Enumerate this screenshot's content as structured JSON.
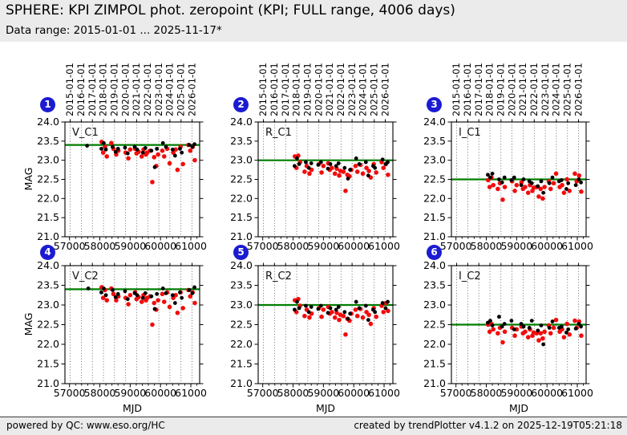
{
  "header": {
    "title": "SPHERE: KPI ZIMPOL phot. zeropoint (KPI; FULL range, 4006 days)",
    "subtitle": "Data range: 2015-01-01 ... 2025-11-17*"
  },
  "footer": {
    "left": "powered by QC: www.eso.org/HC",
    "right": "created by trendPlotter v4.1.2 on 2025-12-19T05:21:18"
  },
  "colors": {
    "scatter_red": "#f20c0c",
    "scatter_black": "#000000",
    "reference_green": "#007d00",
    "badge_blue": "#1b1bd2",
    "band_background": "#ebebeb"
  },
  "chart_data": {
    "type": "scatter",
    "xlabel": "MJD",
    "ylabel": "MAG",
    "xlim": [
      56850,
      61290
    ],
    "ylim": [
      21.0,
      24.0
    ],
    "x_ticks": [
      57000,
      58000,
      59000,
      60000,
      61000
    ],
    "y_ticks": [
      21.0,
      21.5,
      22.0,
      22.5,
      23.0,
      23.5,
      24.0
    ],
    "x_minor_tick_step": 200,
    "grid": "dotted-vertical-at-year-boundaries",
    "top_axis_dates": [
      {
        "label": "2015-01-01",
        "mjd": 57023
      },
      {
        "label": "2016-01-01",
        "mjd": 57388
      },
      {
        "label": "2017-01-01",
        "mjd": 57754
      },
      {
        "label": "2018-01-01",
        "mjd": 58119
      },
      {
        "label": "2019-01-01",
        "mjd": 58484
      },
      {
        "label": "2020-01-01",
        "mjd": 58849
      },
      {
        "label": "2021-01-01",
        "mjd": 59215
      },
      {
        "label": "2022-01-01",
        "mjd": 59580
      },
      {
        "label": "2023-01-01",
        "mjd": 59945
      },
      {
        "label": "2024-01-01",
        "mjd": 60310
      },
      {
        "label": "2025-01-01",
        "mjd": 60676
      },
      {
        "label": "2026-01-01",
        "mjd": 61041
      }
    ],
    "panels": [
      {
        "number": "1",
        "label": "V_C1",
        "reference_line": 23.4,
        "series": [
          {
            "name": "red",
            "color_key": "scatter_red",
            "marker_radius": 2.8,
            "x": [
              58060,
              58110,
              58170,
              58230,
              58380,
              58450,
              58540,
              58610,
              58850,
              58940,
              59000,
              59160,
              59210,
              59280,
              59380,
              59440,
              59520,
              59560,
              59660,
              59730,
              59790,
              59860,
              59920,
              60060,
              60120,
              60220,
              60300,
              60420,
              60500,
              60560,
              60660,
              60740,
              60920,
              60980,
              61060,
              61130
            ],
            "y": [
              23.48,
              23.2,
              23.35,
              23.1,
              23.45,
              23.3,
              23.15,
              23.25,
              23.2,
              23.05,
              23.28,
              23.3,
              23.18,
              23.22,
              23.1,
              23.28,
              23.15,
              23.2,
              23.25,
              22.43,
              23.08,
              22.85,
              23.15,
              23.25,
              23.1,
              23.3,
              22.92,
              23.2,
              23.28,
              22.75,
              23.35,
              22.9,
              23.4,
              23.25,
              23.35,
              23.0
            ]
          },
          {
            "name": "black",
            "color_key": "scatter_black",
            "marker_radius": 2.4,
            "x": [
              57580,
              58050,
              58130,
              58200,
              58420,
              58520,
              58600,
              58830,
              58920,
              59150,
              59230,
              59420,
              59500,
              59700,
              59810,
              59880,
              60080,
              60180,
              60400,
              60480,
              60640,
              60700,
              60950,
              61050,
              61120
            ],
            "y": [
              23.38,
              23.3,
              23.45,
              23.28,
              23.35,
              23.22,
              23.3,
              23.33,
              23.18,
              23.35,
              23.28,
              23.2,
              23.32,
              23.25,
              22.82,
              23.3,
              23.45,
              23.35,
              23.28,
              23.12,
              23.3,
              23.2,
              23.4,
              23.35,
              23.42
            ]
          }
        ]
      },
      {
        "number": "2",
        "label": "R_C1",
        "reference_line": 23.0,
        "series": [
          {
            "name": "red",
            "color_key": "scatter_red",
            "marker_radius": 2.8,
            "x": [
              58060,
              58110,
              58170,
              58230,
              58380,
              58450,
              58540,
              58610,
              58850,
              58940,
              59000,
              59160,
              59210,
              59280,
              59380,
              59440,
              59520,
              59560,
              59660,
              59730,
              59790,
              59860,
              59920,
              60060,
              60120,
              60220,
              60300,
              60420,
              60500,
              60560,
              60660,
              60740,
              60920,
              60980,
              61060,
              61130
            ],
            "y": [
              23.1,
              22.8,
              23.12,
              22.95,
              22.7,
              22.85,
              22.65,
              22.75,
              22.9,
              22.68,
              22.85,
              22.92,
              22.75,
              22.8,
              22.65,
              22.78,
              22.6,
              22.72,
              22.7,
              22.2,
              22.62,
              22.58,
              22.75,
              22.85,
              22.7,
              22.88,
              22.65,
              22.8,
              22.72,
              22.55,
              22.9,
              22.68,
              22.95,
              22.8,
              22.9,
              22.62
            ]
          },
          {
            "name": "black",
            "color_key": "scatter_black",
            "marker_radius": 2.4,
            "x": [
              58050,
              58130,
              58200,
              58420,
              58520,
              58600,
              58830,
              58920,
              59150,
              59230,
              59420,
              59500,
              59700,
              59810,
              59880,
              60080,
              60180,
              60400,
              60480,
              60640,
              60700,
              60950,
              61050,
              61120
            ],
            "y": [
              22.85,
              23.05,
              22.9,
              22.95,
              22.8,
              22.92,
              22.88,
              22.95,
              22.78,
              22.9,
              22.85,
              22.92,
              22.8,
              22.52,
              22.75,
              23.05,
              22.9,
              22.95,
              22.6,
              22.85,
              22.8,
              23.02,
              22.9,
              22.95
            ]
          }
        ]
      },
      {
        "number": "3",
        "label": "I_C1",
        "reference_line": 22.5,
        "series": [
          {
            "name": "red",
            "color_key": "scatter_red",
            "marker_radius": 2.8,
            "x": [
              58060,
              58110,
              58170,
              58230,
              58380,
              58450,
              58540,
              58610,
              58850,
              58940,
              59000,
              59160,
              59210,
              59280,
              59380,
              59440,
              59520,
              59560,
              59660,
              59730,
              59790,
              59860,
              59920,
              60060,
              60120,
              60220,
              60300,
              60420,
              60500,
              60560,
              60660,
              60740,
              60920,
              60980,
              61060,
              61130
            ],
            "y": [
              22.48,
              22.3,
              22.55,
              22.35,
              22.25,
              22.4,
              21.97,
              22.3,
              22.45,
              22.2,
              22.35,
              22.42,
              22.25,
              22.3,
              22.15,
              22.35,
              22.2,
              22.28,
              22.3,
              22.05,
              22.25,
              22.0,
              22.3,
              22.45,
              22.25,
              22.4,
              22.65,
              22.3,
              22.35,
              22.15,
              22.5,
              22.2,
              22.65,
              22.45,
              22.6,
              22.18
            ]
          },
          {
            "name": "black",
            "color_key": "scatter_black",
            "marker_radius": 2.4,
            "x": [
              58050,
              58130,
              58200,
              58420,
              58520,
              58600,
              58830,
              58920,
              59150,
              59230,
              59420,
              59500,
              59700,
              59810,
              59880,
              60080,
              60180,
              60400,
              60480,
              60640,
              60700,
              60950,
              61050,
              61120
            ],
            "y": [
              22.62,
              22.55,
              22.65,
              22.5,
              22.42,
              22.55,
              22.48,
              22.55,
              22.35,
              22.5,
              22.45,
              22.4,
              22.32,
              22.45,
              22.15,
              22.4,
              22.55,
              22.45,
              22.48,
              22.25,
              22.4,
              22.35,
              22.5,
              22.42
            ]
          }
        ]
      },
      {
        "number": "4",
        "label": "V_C2",
        "reference_line": 23.4,
        "series": [
          {
            "name": "red",
            "color_key": "scatter_red",
            "marker_radius": 2.8,
            "x": [
              58060,
              58110,
              58170,
              58230,
              58380,
              58450,
              58540,
              58610,
              58850,
              58940,
              59000,
              59160,
              59210,
              59280,
              59380,
              59440,
              59520,
              59560,
              59660,
              59730,
              59790,
              59860,
              59920,
              60060,
              60120,
              60220,
              60300,
              60420,
              60500,
              60560,
              60660,
              60740,
              60920,
              60980,
              61060,
              61130
            ],
            "y": [
              23.45,
              23.18,
              23.38,
              23.12,
              23.42,
              23.28,
              23.12,
              23.22,
              23.18,
              23.02,
              23.25,
              23.32,
              23.15,
              23.2,
              23.08,
              23.25,
              23.12,
              23.18,
              23.22,
              22.5,
              23.05,
              22.88,
              23.12,
              23.28,
              23.08,
              23.32,
              22.95,
              23.18,
              23.25,
              22.8,
              23.32,
              22.92,
              23.38,
              23.22,
              23.32,
              23.05
            ]
          },
          {
            "name": "black",
            "color_key": "scatter_black",
            "marker_radius": 2.4,
            "x": [
              57620,
              58050,
              58130,
              58200,
              58420,
              58520,
              58600,
              58830,
              58920,
              59150,
              59230,
              59420,
              59500,
              59700,
              59810,
              59880,
              60080,
              60180,
              60400,
              60480,
              60640,
              60700,
              60950,
              61050,
              61120
            ],
            "y": [
              23.42,
              23.32,
              23.42,
              23.25,
              23.38,
              23.2,
              23.28,
              23.35,
              23.15,
              23.3,
              23.25,
              23.18,
              23.3,
              23.22,
              22.9,
              23.28,
              23.42,
              23.3,
              23.25,
              23.05,
              23.32,
              23.18,
              23.38,
              23.3,
              23.45
            ]
          }
        ]
      },
      {
        "number": "5",
        "label": "R_C2",
        "reference_line": 23.0,
        "series": [
          {
            "name": "red",
            "color_key": "scatter_red",
            "marker_radius": 2.8,
            "x": [
              58060,
              58110,
              58170,
              58230,
              58380,
              58450,
              58540,
              58610,
              58850,
              58940,
              59000,
              59160,
              59210,
              59280,
              59380,
              59440,
              59520,
              59560,
              59660,
              59730,
              59790,
              59860,
              59920,
              60060,
              60120,
              60220,
              60300,
              60420,
              60500,
              60560,
              60660,
              60740,
              60920,
              60980,
              61060,
              61130
            ],
            "y": [
              23.12,
              22.82,
              23.15,
              22.98,
              22.72,
              22.88,
              22.68,
              22.78,
              22.92,
              22.7,
              22.88,
              22.95,
              22.78,
              22.82,
              22.68,
              22.8,
              22.62,
              22.75,
              22.72,
              22.25,
              22.65,
              22.6,
              22.78,
              22.88,
              22.72,
              22.9,
              22.68,
              22.82,
              22.75,
              22.52,
              22.92,
              22.7,
              22.98,
              22.82,
              23.05,
              22.85
            ]
          },
          {
            "name": "black",
            "color_key": "scatter_black",
            "marker_radius": 2.4,
            "x": [
              58050,
              58130,
              58200,
              58420,
              58520,
              58600,
              58830,
              58920,
              59150,
              59230,
              59420,
              59500,
              59700,
              59810,
              59880,
              60080,
              60180,
              60400,
              60480,
              60640,
              60700,
              60950,
              61050,
              61120
            ],
            "y": [
              22.88,
              23.08,
              22.92,
              22.98,
              22.82,
              22.95,
              22.9,
              22.98,
              22.8,
              22.92,
              22.88,
              22.95,
              22.82,
              22.65,
              22.78,
              23.08,
              22.92,
              22.98,
              22.62,
              22.88,
              22.82,
              23.05,
              22.92,
              23.08
            ]
          }
        ]
      },
      {
        "number": "6",
        "label": "I_C2",
        "reference_line": 22.5,
        "series": [
          {
            "name": "red",
            "color_key": "scatter_red",
            "marker_radius": 2.8,
            "x": [
              58060,
              58110,
              58170,
              58230,
              58380,
              58450,
              58540,
              58610,
              58850,
              58940,
              59000,
              59160,
              59210,
              59280,
              59380,
              59440,
              59520,
              59560,
              59660,
              59730,
              59790,
              59860,
              59920,
              60060,
              60120,
              60220,
              60300,
              60420,
              60500,
              60560,
              60660,
              60740,
              60920,
              60980,
              61060,
              61130
            ],
            "y": [
              22.5,
              22.32,
              22.52,
              22.38,
              22.28,
              22.42,
              22.05,
              22.32,
              22.42,
              22.22,
              22.38,
              22.45,
              22.28,
              22.32,
              22.18,
              22.38,
              22.22,
              22.3,
              22.28,
              22.1,
              22.28,
              22.15,
              22.32,
              22.48,
              22.28,
              22.42,
              22.62,
              22.32,
              22.38,
              22.18,
              22.52,
              22.25,
              22.6,
              22.42,
              22.58,
              22.22
            ]
          },
          {
            "name": "black",
            "color_key": "scatter_black",
            "marker_radius": 2.4,
            "x": [
              58050,
              58130,
              58200,
              58420,
              58520,
              58600,
              58830,
              58920,
              59150,
              59230,
              59420,
              59500,
              59700,
              59810,
              59880,
              60080,
              60180,
              60400,
              60480,
              60640,
              60700,
              60950,
              61050,
              61120
            ],
            "y": [
              22.55,
              22.6,
              22.48,
              22.7,
              22.45,
              22.52,
              22.6,
              22.38,
              22.52,
              22.45,
              22.42,
              22.6,
              22.35,
              22.48,
              22.0,
              22.42,
              22.58,
              22.42,
              22.45,
              22.3,
              22.38,
              22.4,
              22.52,
              22.45
            ]
          }
        ]
      }
    ]
  }
}
